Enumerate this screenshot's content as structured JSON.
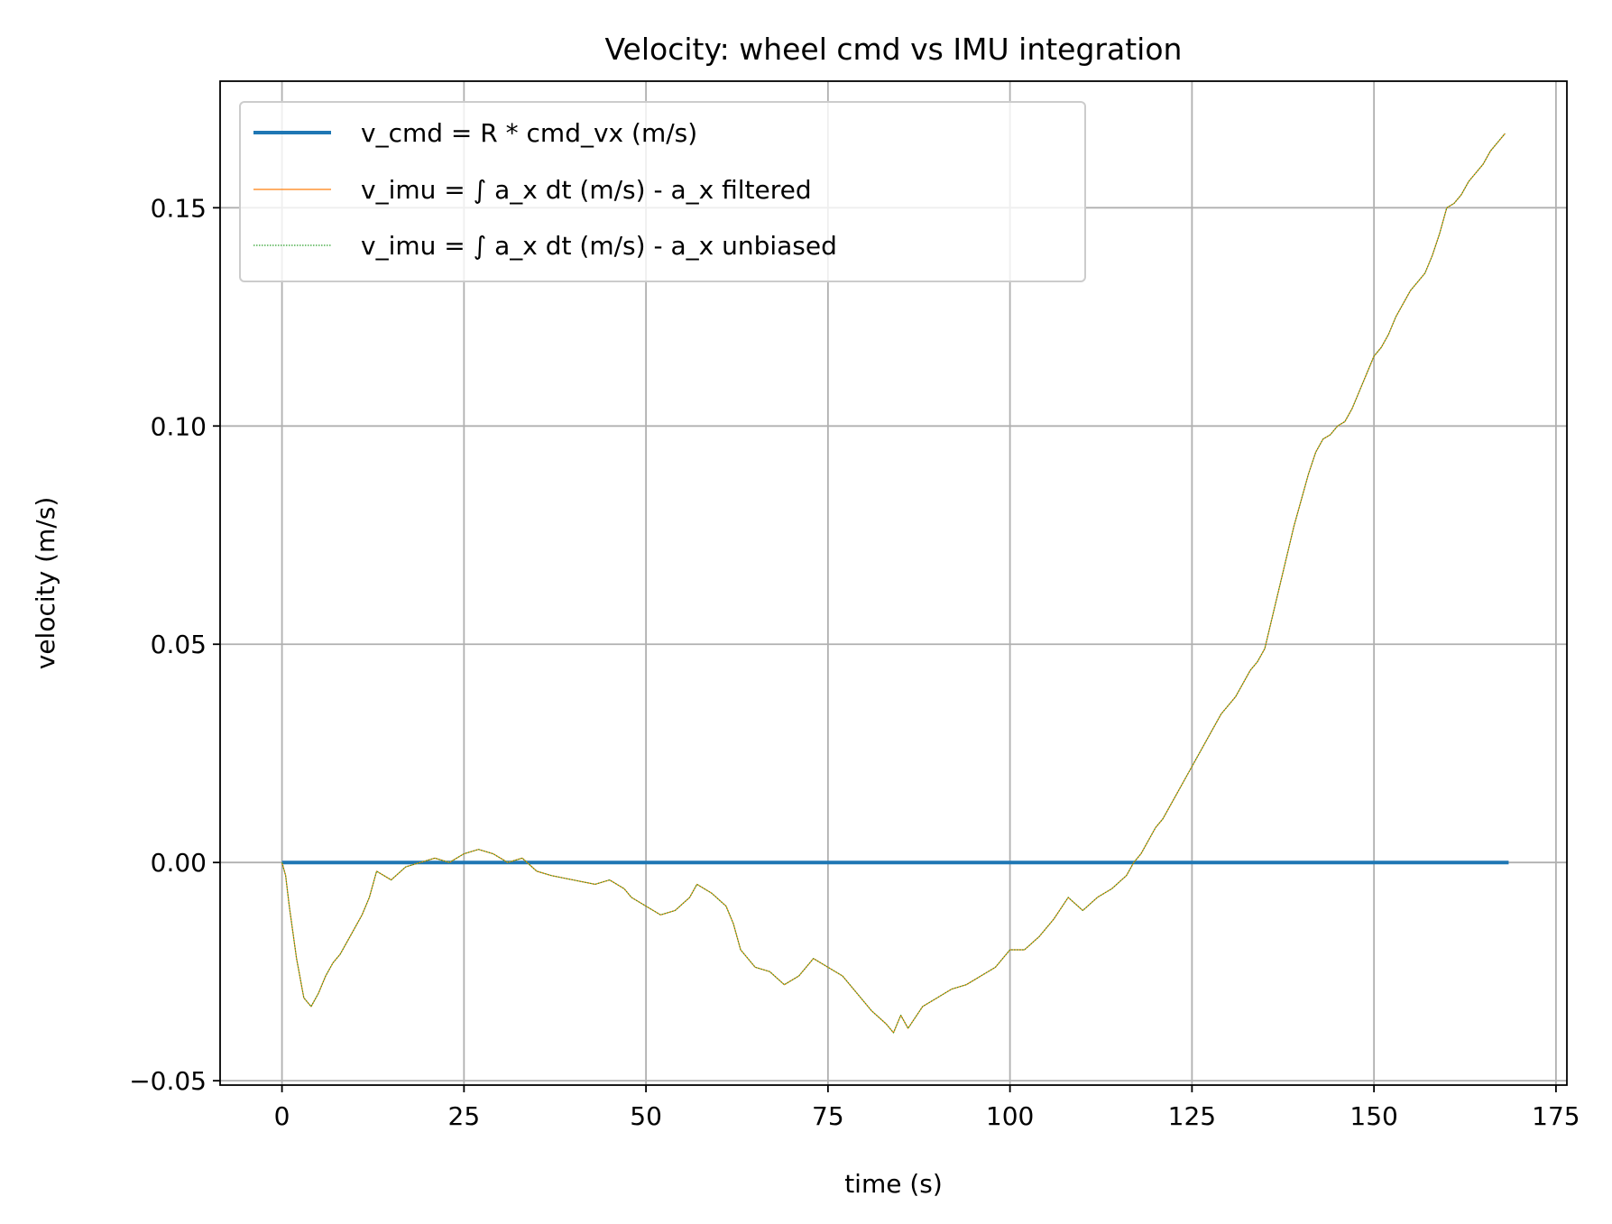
{
  "chart_data": {
    "type": "line",
    "title": "Velocity: wheel cmd vs IMU integration",
    "xlabel": "time (s)",
    "ylabel": "velocity (m/s)",
    "xlim": [
      -8.5,
      176.5
    ],
    "ylim": [
      -0.051,
      0.179
    ],
    "x_ticks": [
      0,
      25,
      50,
      75,
      100,
      125,
      150,
      175
    ],
    "x_tick_labels": [
      "0",
      "25",
      "50",
      "75",
      "100",
      "125",
      "150",
      "175"
    ],
    "y_ticks": [
      -0.05,
      0.0,
      0.05,
      0.1,
      0.15
    ],
    "y_tick_labels": [
      "−0.05",
      "0.00",
      "0.05",
      "0.10",
      "0.15"
    ],
    "grid": true,
    "legend_position": "upper-left",
    "series": [
      {
        "name": "v_cmd = R * cmd_vx (m/s)",
        "color": "#1f77b4",
        "style": "solid-thick",
        "x": [
          0,
          168.5
        ],
        "y": [
          0.0,
          0.0
        ]
      },
      {
        "name": "v_imu = ∫ a_x dt (m/s) - a_x filtered",
        "color": "#ff7f0e",
        "style": "solid-thin",
        "x": [
          0,
          0.5,
          1,
          2,
          3,
          4,
          5,
          6,
          7,
          8,
          9,
          10,
          11,
          12,
          13,
          15,
          17,
          19,
          21,
          23,
          25,
          27,
          29,
          31,
          33,
          35,
          37,
          40,
          43,
          45,
          47,
          48,
          50,
          52,
          54,
          56,
          57,
          59,
          61,
          62,
          63,
          65,
          67,
          69,
          71,
          73,
          75,
          77,
          79,
          81,
          83,
          84,
          85,
          86,
          88,
          90,
          92,
          94,
          96,
          98,
          100,
          102,
          104,
          106,
          108,
          110,
          112,
          114,
          116,
          117,
          118,
          119,
          120,
          121,
          122,
          123,
          124,
          125,
          126,
          127,
          128,
          129,
          130,
          131,
          132,
          133,
          134,
          135,
          136,
          137,
          138,
          139,
          140,
          141,
          142,
          143,
          144,
          145,
          146,
          147,
          148,
          149,
          150,
          151,
          152,
          153,
          154,
          155,
          156,
          157,
          158,
          159,
          160,
          161,
          162,
          163,
          164,
          165,
          166,
          167,
          168
        ],
        "y": [
          0.0,
          -0.003,
          -0.01,
          -0.022,
          -0.031,
          -0.033,
          -0.03,
          -0.026,
          -0.023,
          -0.021,
          -0.018,
          -0.015,
          -0.012,
          -0.008,
          -0.002,
          -0.004,
          -0.001,
          0.0,
          0.001,
          0.0,
          0.002,
          0.003,
          0.002,
          0.0,
          0.001,
          -0.002,
          -0.003,
          -0.004,
          -0.005,
          -0.004,
          -0.006,
          -0.008,
          -0.01,
          -0.012,
          -0.011,
          -0.008,
          -0.005,
          -0.007,
          -0.01,
          -0.014,
          -0.02,
          -0.024,
          -0.025,
          -0.028,
          -0.026,
          -0.022,
          -0.024,
          -0.026,
          -0.03,
          -0.034,
          -0.037,
          -0.039,
          -0.035,
          -0.038,
          -0.033,
          -0.031,
          -0.029,
          -0.028,
          -0.026,
          -0.024,
          -0.02,
          -0.02,
          -0.017,
          -0.013,
          -0.008,
          -0.011,
          -0.008,
          -0.006,
          -0.003,
          0.0,
          0.002,
          0.005,
          0.008,
          0.01,
          0.013,
          0.016,
          0.019,
          0.022,
          0.025,
          0.028,
          0.031,
          0.034,
          0.036,
          0.038,
          0.041,
          0.044,
          0.046,
          0.049,
          0.056,
          0.063,
          0.07,
          0.077,
          0.083,
          0.089,
          0.094,
          0.097,
          0.098,
          0.1,
          0.101,
          0.104,
          0.108,
          0.112,
          0.116,
          0.118,
          0.121,
          0.125,
          0.128,
          0.131,
          0.133,
          0.135,
          0.139,
          0.144,
          0.15,
          0.151,
          0.153,
          0.156,
          0.158,
          0.16,
          0.163,
          0.165,
          0.167
        ]
      },
      {
        "name": "v_imu = ∫ a_x dt (m/s) - a_x unbiased",
        "color": "#2ca02c",
        "style": "dotted",
        "x": [
          0,
          0.5,
          1,
          2,
          3,
          4,
          5,
          6,
          7,
          8,
          9,
          10,
          11,
          12,
          13,
          15,
          17,
          19,
          21,
          23,
          25,
          27,
          29,
          31,
          33,
          35,
          37,
          40,
          43,
          45,
          47,
          48,
          50,
          52,
          54,
          56,
          57,
          59,
          61,
          62,
          63,
          65,
          67,
          69,
          71,
          73,
          75,
          77,
          79,
          81,
          83,
          84,
          85,
          86,
          88,
          90,
          92,
          94,
          96,
          98,
          100,
          102,
          104,
          106,
          108,
          110,
          112,
          114,
          116,
          117,
          118,
          119,
          120,
          121,
          122,
          123,
          124,
          125,
          126,
          127,
          128,
          129,
          130,
          131,
          132,
          133,
          134,
          135,
          136,
          137,
          138,
          139,
          140,
          141,
          142,
          143,
          144,
          145,
          146,
          147,
          148,
          149,
          150,
          151,
          152,
          153,
          154,
          155,
          156,
          157,
          158,
          159,
          160,
          161,
          162,
          163,
          164,
          165,
          166,
          167,
          168
        ],
        "y": [
          0.0,
          -0.003,
          -0.01,
          -0.022,
          -0.031,
          -0.033,
          -0.03,
          -0.026,
          -0.023,
          -0.021,
          -0.018,
          -0.015,
          -0.012,
          -0.008,
          -0.002,
          -0.004,
          -0.001,
          0.0,
          0.001,
          0.0,
          0.002,
          0.003,
          0.002,
          0.0,
          0.001,
          -0.002,
          -0.003,
          -0.004,
          -0.005,
          -0.004,
          -0.006,
          -0.008,
          -0.01,
          -0.012,
          -0.011,
          -0.008,
          -0.005,
          -0.007,
          -0.01,
          -0.014,
          -0.02,
          -0.024,
          -0.025,
          -0.028,
          -0.026,
          -0.022,
          -0.024,
          -0.026,
          -0.03,
          -0.034,
          -0.037,
          -0.039,
          -0.035,
          -0.038,
          -0.033,
          -0.031,
          -0.029,
          -0.028,
          -0.026,
          -0.024,
          -0.02,
          -0.02,
          -0.017,
          -0.013,
          -0.008,
          -0.011,
          -0.008,
          -0.006,
          -0.003,
          0.0,
          0.002,
          0.005,
          0.008,
          0.01,
          0.013,
          0.016,
          0.019,
          0.022,
          0.025,
          0.028,
          0.031,
          0.034,
          0.036,
          0.038,
          0.041,
          0.044,
          0.046,
          0.049,
          0.056,
          0.063,
          0.07,
          0.077,
          0.083,
          0.089,
          0.094,
          0.097,
          0.098,
          0.1,
          0.101,
          0.104,
          0.108,
          0.112,
          0.116,
          0.118,
          0.121,
          0.125,
          0.128,
          0.131,
          0.133,
          0.135,
          0.139,
          0.144,
          0.15,
          0.151,
          0.153,
          0.156,
          0.158,
          0.16,
          0.163,
          0.165,
          0.167
        ]
      }
    ]
  }
}
